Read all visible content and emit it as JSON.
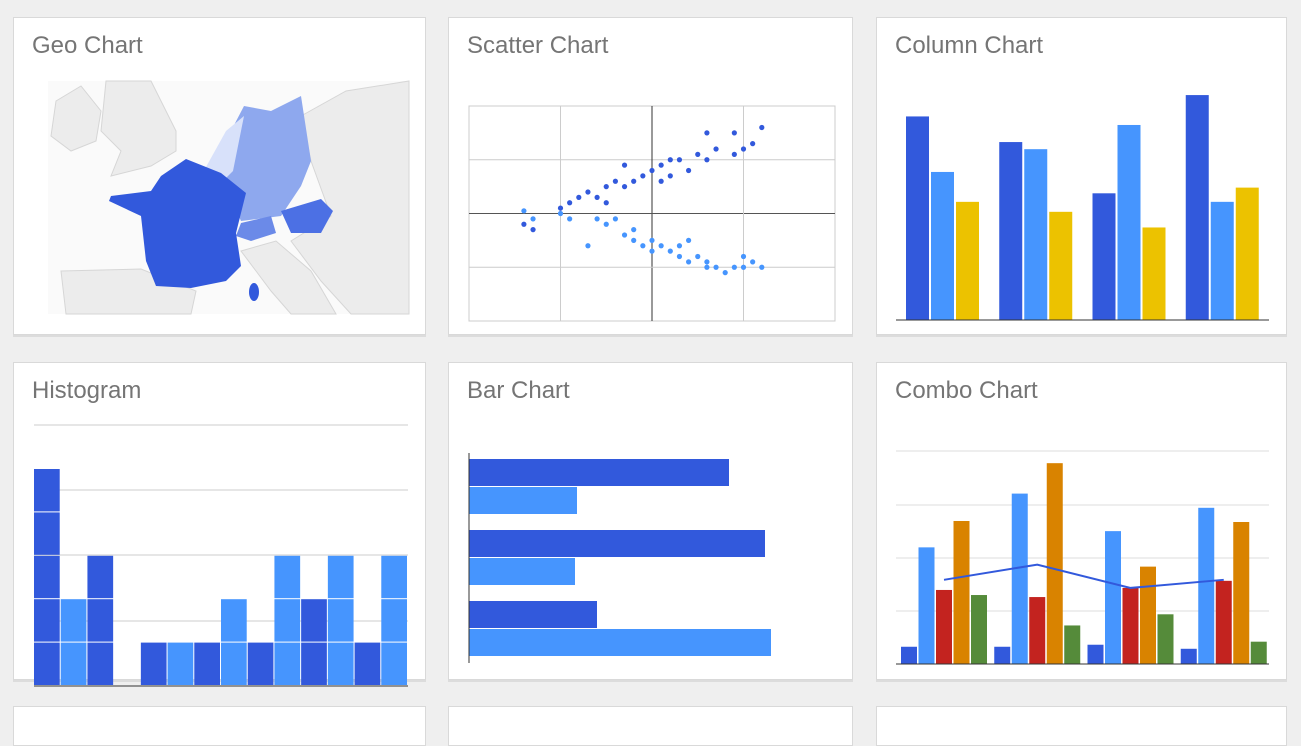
{
  "gallery": {
    "cards": [
      {
        "title": "Geo Chart"
      },
      {
        "title": "Scatter Chart"
      },
      {
        "title": "Column Chart"
      },
      {
        "title": "Histogram"
      },
      {
        "title": "Bar Chart"
      },
      {
        "title": "Combo Chart"
      }
    ]
  },
  "colors": {
    "dark_blue": "#3259dc",
    "light_blue": "#4695fe",
    "yellow": "#ecc200",
    "red": "#c3231f",
    "orange": "#d98300",
    "green": "#558b3a",
    "map_gray": "#ececec",
    "germany": "#8ea8ee",
    "benelux": "#d8e1fa",
    "austria": "#4c70e4"
  },
  "chart_data": [
    {
      "type": "geo",
      "regions": [
        {
          "name": "France",
          "shade": "darkest"
        },
        {
          "name": "Germany",
          "shade": "light"
        },
        {
          "name": "Benelux",
          "shade": "lightest"
        },
        {
          "name": "Austria",
          "shade": "dark"
        },
        {
          "name": "Switzerland",
          "shade": "medium"
        }
      ]
    },
    {
      "type": "scatter",
      "xlim": [
        -2,
        2
      ],
      "ylim": [
        -2,
        2
      ],
      "grid": true,
      "series": [
        {
          "color": "#3259dc",
          "points": [
            [
              -1.4,
              -0.2
            ],
            [
              -1.3,
              -0.3
            ],
            [
              -1.0,
              0.1
            ],
            [
              -0.9,
              0.2
            ],
            [
              -0.8,
              0.3
            ],
            [
              -0.7,
              0.4
            ],
            [
              -0.6,
              0.3
            ],
            [
              -0.5,
              0.5
            ],
            [
              -0.4,
              0.6
            ],
            [
              -0.3,
              0.5
            ],
            [
              -0.2,
              0.6
            ],
            [
              -0.1,
              0.7
            ],
            [
              0,
              0.8
            ],
            [
              0.1,
              0.6
            ],
            [
              0.1,
              0.9
            ],
            [
              0.2,
              0.7
            ],
            [
              0.3,
              1.0
            ],
            [
              0.4,
              0.8
            ],
            [
              0.5,
              1.1
            ],
            [
              0.6,
              1.0
            ],
            [
              0.7,
              1.2
            ],
            [
              0.9,
              1.1
            ],
            [
              0.9,
              1.5
            ],
            [
              1.0,
              1.2
            ],
            [
              1.1,
              1.3
            ],
            [
              1.2,
              1.6
            ],
            [
              0.6,
              1.5
            ],
            [
              -0.3,
              0.9
            ],
            [
              0.2,
              1.0
            ],
            [
              -0.5,
              0.2
            ]
          ]
        },
        {
          "color": "#4695fe",
          "points": [
            [
              -1.4,
              0.05
            ],
            [
              -1.3,
              -0.1
            ],
            [
              -1.0,
              0
            ],
            [
              -0.9,
              -0.1
            ],
            [
              -0.6,
              -0.1
            ],
            [
              -0.5,
              -0.2
            ],
            [
              -0.4,
              -0.1
            ],
            [
              -0.3,
              -0.4
            ],
            [
              -0.2,
              -0.5
            ],
            [
              -0.1,
              -0.6
            ],
            [
              0,
              -0.5
            ],
            [
              0,
              -0.7
            ],
            [
              0.1,
              -0.6
            ],
            [
              0.2,
              -0.7
            ],
            [
              0.3,
              -0.8
            ],
            [
              0.3,
              -0.6
            ],
            [
              0.4,
              -0.9
            ],
            [
              0.5,
              -0.8
            ],
            [
              0.6,
              -1.0
            ],
            [
              0.7,
              -1.0
            ],
            [
              0.8,
              -1.1
            ],
            [
              0.9,
              -1.0
            ],
            [
              1.0,
              -1.0
            ],
            [
              1.1,
              -0.9
            ],
            [
              1.2,
              -1.0
            ],
            [
              -0.7,
              -0.6
            ],
            [
              0.4,
              -0.5
            ],
            [
              1.0,
              -0.8
            ],
            [
              -0.2,
              -0.3
            ],
            [
              0.6,
              -0.9
            ]
          ]
        }
      ]
    },
    {
      "type": "bar",
      "orientation": "vertical",
      "ylim": [
        0,
        170
      ],
      "series": [
        {
          "color": "#3259dc",
          "values": [
            143,
            125,
            89,
            158
          ]
        },
        {
          "color": "#4695fe",
          "values": [
            104,
            120,
            137,
            83
          ]
        },
        {
          "color": "#ecc200",
          "values": [
            83,
            76,
            65,
            93
          ]
        }
      ]
    },
    {
      "type": "histogram",
      "ylim": [
        0,
        6
      ],
      "bins": [
        {
          "count": 5,
          "color": "#3259dc"
        },
        {
          "count": 2,
          "color": "#4695fe"
        },
        {
          "count": 3,
          "color": "#3259dc"
        },
        {
          "count": 0,
          "color": "#4695fe"
        },
        {
          "count": 1,
          "color": "#3259dc"
        },
        {
          "count": 1,
          "color": "#4695fe"
        },
        {
          "count": 1,
          "color": "#3259dc"
        },
        {
          "count": 2,
          "color": "#4695fe"
        },
        {
          "count": 1,
          "color": "#3259dc"
        },
        {
          "count": 3,
          "color": "#4695fe"
        },
        {
          "count": 2,
          "color": "#3259dc"
        },
        {
          "count": 3,
          "color": "#4695fe"
        },
        {
          "count": 1,
          "color": "#3259dc"
        },
        {
          "count": 3,
          "color": "#4695fe"
        }
      ]
    },
    {
      "type": "bar",
      "orientation": "horizontal",
      "xlim": [
        0,
        320
      ],
      "series": [
        {
          "color": "#3259dc",
          "values": [
            260,
            296,
            128
          ]
        },
        {
          "color": "#4695fe",
          "values": [
            108,
            106,
            302
          ]
        }
      ]
    },
    {
      "type": "combo",
      "ylim": [
        0,
        210
      ],
      "bars": [
        {
          "color": "#3259dc",
          "values": [
            17,
            17,
            19,
            15
          ]
        },
        {
          "color": "#4695fe",
          "values": [
            115,
            168,
            131,
            154
          ]
        },
        {
          "color": "#c3231f",
          "values": [
            73,
            66,
            75,
            82
          ]
        },
        {
          "color": "#d98300",
          "values": [
            141,
            198,
            96,
            140
          ]
        },
        {
          "color": "#558b3a",
          "values": [
            68,
            38,
            49,
            22
          ]
        }
      ],
      "line": {
        "color": "#3259dc",
        "values": [
          83,
          98,
          75,
          83
        ]
      }
    }
  ]
}
